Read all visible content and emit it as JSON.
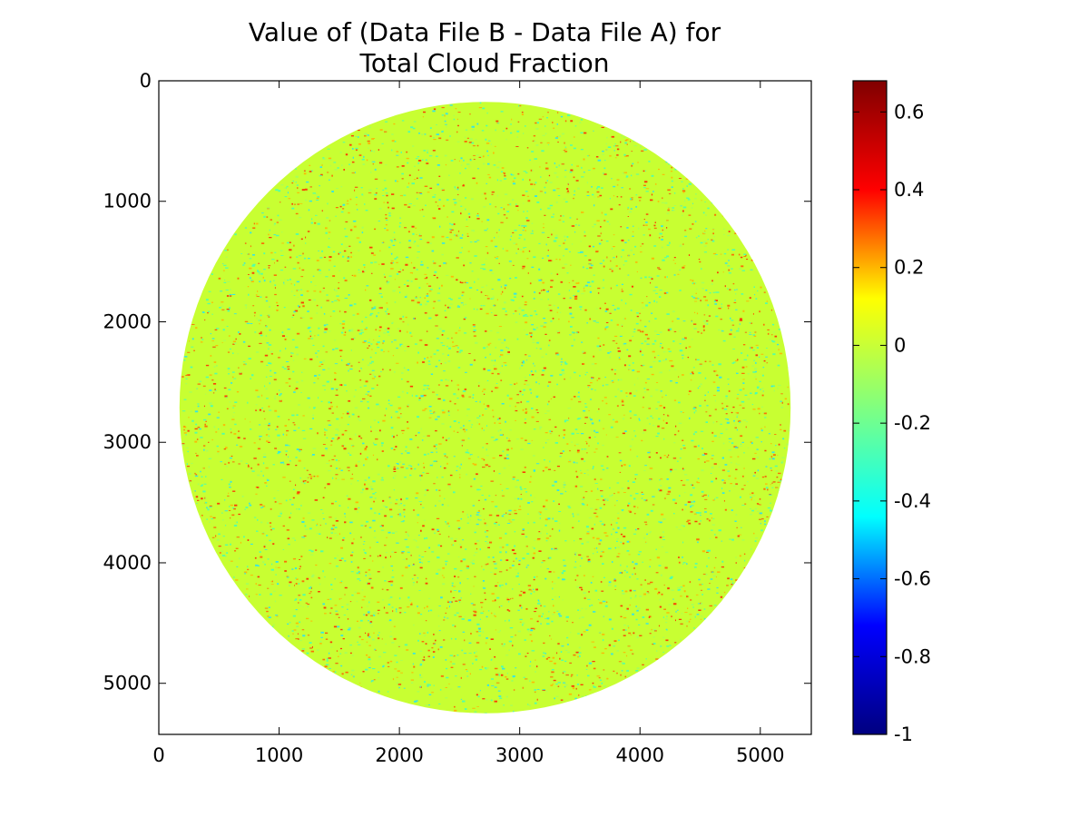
{
  "chart_data": {
    "type": "heatmap",
    "title_lines": [
      "Value of (Data File B - Data File A) for",
      "Total Cloud Fraction"
    ],
    "xlabel": "",
    "ylabel": "",
    "xlim": [
      0,
      5424
    ],
    "ylim": [
      5424,
      0
    ],
    "x_ticks": [
      0,
      1000,
      2000,
      3000,
      4000,
      5000
    ],
    "y_ticks": [
      0,
      1000,
      2000,
      3000,
      4000,
      5000
    ],
    "x_tick_labels": [
      "0",
      "1000",
      "2000",
      "3000",
      "4000",
      "5000"
    ],
    "y_tick_labels": [
      "0",
      "1000",
      "2000",
      "3000",
      "4000",
      "5000"
    ],
    "disk": {
      "center_x": 2712,
      "center_y": 2712,
      "radius": 2540
    },
    "background_value": 0,
    "grid": false,
    "colormap": "jet",
    "colorbar": {
      "min": -1,
      "max": 0.68,
      "ticks": [
        0.6,
        0.4,
        0.2,
        0,
        -0.2,
        -0.4,
        -0.6,
        -0.8,
        -1
      ],
      "tick_labels": [
        "0.6",
        "0.4",
        "0.2",
        "0",
        "-0.2",
        "-0.4",
        "-0.6",
        "-0.8",
        "-1"
      ],
      "stops": [
        "#000080",
        "#0000ff",
        "#00ffff",
        "#80ff80",
        "#ffff00",
        "#ff0000",
        "#800000"
      ],
      "zero_color": "#c8ff32"
    }
  }
}
